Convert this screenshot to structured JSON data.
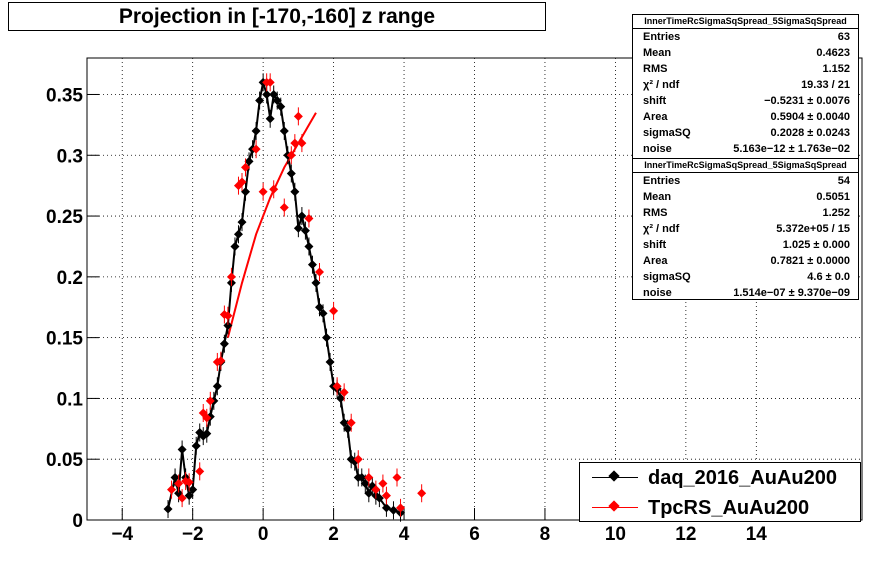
{
  "title": "Projection in [-170,-160] z range",
  "colors": {
    "daq": "#000000",
    "tpcrs": "#ff0000",
    "grid": "#000000"
  },
  "stats": [
    {
      "name": "InnerTimeRcSigmaSqSpread_5SigmaSqSpread",
      "rows": [
        {
          "label": "Entries",
          "value": "63"
        },
        {
          "label": "Mean",
          "value": "0.4623"
        },
        {
          "label": "RMS",
          "value": "1.152"
        },
        {
          "label": "χ² / ndf",
          "value": "19.33 / 21"
        },
        {
          "label": "shift",
          "value": "−0.5231 ± 0.0076"
        },
        {
          "label": "Area",
          "value": "0.5904 ± 0.0040"
        },
        {
          "label": "sigmaSQ",
          "value": "0.2028 ± 0.0243"
        },
        {
          "label": "noise",
          "value": "5.163e−12 ± 1.763e−02"
        }
      ]
    },
    {
      "name": "InnerTimeRcSigmaSqSpread_5SigmaSqSpread",
      "rows": [
        {
          "label": "Entries",
          "value": "54"
        },
        {
          "label": "Mean",
          "value": "0.5051"
        },
        {
          "label": "RMS",
          "value": "1.252"
        },
        {
          "label": "χ² / ndf",
          "value": "5.372e+05 / 15"
        },
        {
          "label": "shift",
          "value": "1.025 ± 0.000"
        },
        {
          "label": "Area",
          "value": "0.7821 ± 0.0000"
        },
        {
          "label": "sigmaSQ",
          "value": "4.6 ± 0.0"
        },
        {
          "label": "noise",
          "value": "1.514e−07 ± 9.370e−09"
        }
      ]
    }
  ],
  "legend": [
    {
      "label": "daq_2016_AuAu200",
      "color": "#000000"
    },
    {
      "label": "TpcRS_AuAu200",
      "color": "#ff0000"
    }
  ],
  "chart_data": {
    "type": "scatter",
    "xlim": [
      -5,
      17
    ],
    "ylim": [
      0,
      0.38
    ],
    "grid": true,
    "x_ticks": [
      -4,
      -2,
      0,
      2,
      4,
      6,
      8,
      10,
      12,
      14
    ],
    "x_tick_labels": [
      "−4",
      "−2",
      "0",
      "2",
      "4",
      "6",
      "8",
      "10",
      "12",
      "14"
    ],
    "y_ticks": [
      0,
      0.05,
      0.1,
      0.15,
      0.2,
      0.25,
      0.3,
      0.35
    ],
    "y_tick_labels": [
      "0",
      "0.05",
      "0.1",
      "0.15",
      "0.2",
      "0.25",
      "0.3",
      "0.35"
    ],
    "legend_position": "bottom-right",
    "series": [
      {
        "name": "daq_2016_AuAu200",
        "color": "#000000",
        "x": [
          -2.7,
          -2.5,
          -2.4,
          -2.3,
          -2.2,
          -2.1,
          -2.0,
          -1.9,
          -1.8,
          -1.7,
          -1.6,
          -1.5,
          -1.4,
          -1.3,
          -1.2,
          -1.1,
          -1.0,
          -0.9,
          -0.8,
          -0.7,
          -0.6,
          -0.5,
          -0.4,
          -0.3,
          -0.2,
          -0.1,
          0.0,
          0.1,
          0.2,
          0.3,
          0.4,
          0.5,
          0.6,
          0.7,
          0.8,
          0.9,
          1.0,
          1.1,
          1.2,
          1.3,
          1.4,
          1.5,
          1.6,
          1.7,
          1.8,
          1.9,
          2.0,
          2.1,
          2.2,
          2.3,
          2.4,
          2.5,
          2.6,
          2.7,
          2.8,
          2.9,
          3.0,
          3.1,
          3.2,
          3.3,
          3.5,
          3.7,
          3.9
        ],
        "y": [
          0.009,
          0.035,
          0.022,
          0.058,
          0.035,
          0.02,
          0.025,
          0.061,
          0.072,
          0.069,
          0.071,
          0.085,
          0.098,
          0.11,
          0.13,
          0.145,
          0.16,
          0.195,
          0.225,
          0.235,
          0.245,
          0.27,
          0.295,
          0.305,
          0.32,
          0.345,
          0.36,
          0.35,
          0.33,
          0.35,
          0.345,
          0.34,
          0.32,
          0.3,
          0.285,
          0.27,
          0.24,
          0.25,
          0.238,
          0.225,
          0.21,
          0.195,
          0.175,
          0.17,
          0.15,
          0.13,
          0.11,
          0.108,
          0.1,
          0.08,
          0.075,
          0.05,
          0.048,
          0.035,
          0.035,
          0.03,
          0.022,
          0.028,
          0.02,
          0.018,
          0.01,
          0.008,
          0.006
        ]
      },
      {
        "name": "TpcRS_AuAu200",
        "color": "#ff0000",
        "x": [
          -2.6,
          -2.4,
          -2.3,
          -2.2,
          -2.1,
          -1.8,
          -1.7,
          -1.6,
          -1.5,
          -1.3,
          -1.2,
          -1.1,
          -1.0,
          -0.9,
          -0.7,
          -0.6,
          -0.5,
          -0.2,
          0.0,
          0.1,
          0.2,
          0.3,
          0.6,
          0.8,
          0.9,
          1.0,
          1.1,
          1.3,
          1.6,
          2.0,
          2.1,
          2.3,
          2.5,
          2.7,
          3.0,
          3.2,
          3.4,
          3.5,
          3.8,
          3.9,
          4.5
        ],
        "y": [
          0.025,
          0.03,
          0.018,
          0.032,
          0.031,
          0.04,
          0.088,
          0.084,
          0.098,
          0.13,
          0.131,
          0.169,
          0.168,
          0.2,
          0.275,
          0.278,
          0.29,
          0.305,
          0.27,
          0.36,
          0.36,
          0.272,
          0.257,
          0.3,
          0.31,
          0.332,
          0.31,
          0.248,
          0.204,
          0.172,
          0.11,
          0.105,
          0.08,
          0.05,
          0.035,
          0.025,
          0.03,
          0.02,
          0.035,
          0.01,
          0.022
        ]
      },
      {
        "name": "",
        "color": "#ff0000",
        "style": "line",
        "x": [
          -1.0,
          -0.6,
          -0.2,
          0.2,
          0.6,
          1.0,
          1.2,
          1.5
        ],
        "y": [
          0.15,
          0.195,
          0.235,
          0.265,
          0.29,
          0.31,
          0.32,
          0.335
        ]
      }
    ]
  }
}
